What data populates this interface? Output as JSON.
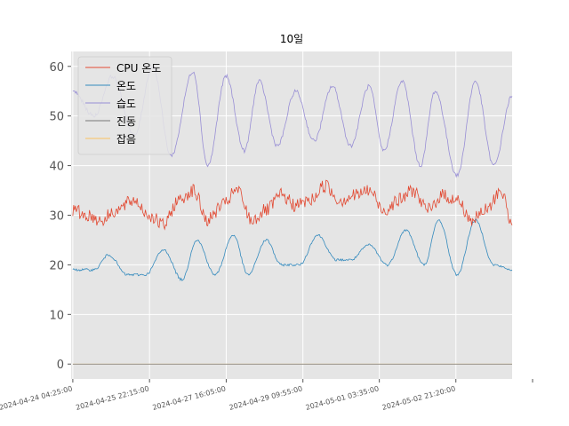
{
  "chart_data": {
    "type": "line",
    "title": "10일",
    "xlabel": "",
    "ylabel": "",
    "grid": true,
    "legend_position": "top-left",
    "ylim": [
      -3,
      63
    ],
    "yticks": [
      0,
      10,
      20,
      30,
      40,
      50,
      60
    ],
    "x_range": [
      "2024-04-24 03:30:00",
      "2024-05-04 04:00:00"
    ],
    "xticks": [
      "2024-04-24 04:25:00",
      "2024-04-25 22:15:00",
      "2024-04-27 16:05:00",
      "2024-04-29 09:55:00",
      "2024-05-01 03:35:00",
      "2024-05-02 21:20:00",
      "2024-05-04 15:10:00"
    ],
    "xtick_labels": [
      "2024-04-24 04:25:00",
      "2024-04-25 22:15:00",
      "2024-04-27 16:05:00",
      "2024-04-29 09:55:00",
      "2024-05-01 03:35:00",
      "2024-05-02 21:20:00",
      ""
    ],
    "series": [
      {
        "name": "CPU 온도",
        "color": "#e24a33",
        "x": [
          "2024-04-24 04:25:00",
          "2024-04-24 12:00:00",
          "2024-04-24 20:00:00",
          "2024-04-25 04:00:00",
          "2024-04-25 14:00:00",
          "2024-04-25 22:00:00",
          "2024-04-26 06:00:00",
          "2024-04-26 14:00:00",
          "2024-04-26 22:00:00",
          "2024-04-27 06:00:00",
          "2024-04-27 14:00:00",
          "2024-04-27 22:00:00",
          "2024-04-28 06:00:00",
          "2024-04-28 14:00:00",
          "2024-04-28 22:00:00",
          "2024-04-29 06:00:00",
          "2024-04-29 14:00:00",
          "2024-04-29 22:00:00",
          "2024-04-30 06:00:00",
          "2024-04-30 14:00:00",
          "2024-04-30 22:00:00",
          "2024-05-01 06:00:00",
          "2024-05-01 14:00:00",
          "2024-05-01 22:00:00",
          "2024-05-02 06:00:00",
          "2024-05-02 14:00:00",
          "2024-05-02 22:00:00",
          "2024-05-03 06:00:00",
          "2024-05-03 14:00:00",
          "2024-05-03 22:00:00",
          "2024-05-04 04:00:00"
        ],
        "values": [
          31,
          30,
          29,
          31,
          33,
          30,
          28,
          33,
          35,
          29,
          32,
          35,
          29,
          31,
          34,
          32,
          33,
          36,
          33,
          34,
          35,
          31,
          33,
          35,
          31,
          34,
          33,
          29,
          31,
          35,
          28
        ]
      },
      {
        "name": "온도",
        "color": "#348abd",
        "x": [
          "2024-04-24 04:25:00",
          "2024-04-24 16:00:00",
          "2024-04-25 00:00:00",
          "2024-04-25 10:00:00",
          "2024-04-25 20:00:00",
          "2024-04-26 06:00:00",
          "2024-04-26 16:00:00",
          "2024-04-27 00:00:00",
          "2024-04-27 10:00:00",
          "2024-04-27 20:00:00",
          "2024-04-28 04:00:00",
          "2024-04-28 14:00:00",
          "2024-04-28 22:00:00",
          "2024-04-29 08:00:00",
          "2024-04-29 18:00:00",
          "2024-04-30 04:00:00",
          "2024-04-30 12:00:00",
          "2024-04-30 22:00:00",
          "2024-05-01 08:00:00",
          "2024-05-01 18:00:00",
          "2024-05-02 04:00:00",
          "2024-05-02 12:00:00",
          "2024-05-02 22:00:00",
          "2024-05-03 08:00:00",
          "2024-05-03 18:00:00",
          "2024-05-04 04:00:00"
        ],
        "values": [
          19,
          19,
          22,
          18,
          18,
          23,
          17,
          25,
          18,
          26,
          18,
          25,
          20,
          20,
          26,
          21,
          21,
          24,
          20,
          27,
          20,
          29,
          18,
          29,
          20,
          19
        ]
      },
      {
        "name": "습도",
        "color": "#988ed5",
        "x": [
          "2024-04-24 04:25:00",
          "2024-04-24 16:00:00",
          "2024-04-25 02:00:00",
          "2024-04-25 14:00:00",
          "2024-04-26 00:00:00",
          "2024-04-26 10:00:00",
          "2024-04-26 22:00:00",
          "2024-04-27 06:00:00",
          "2024-04-27 16:00:00",
          "2024-04-28 02:00:00",
          "2024-04-28 10:00:00",
          "2024-04-28 20:00:00",
          "2024-04-29 06:00:00",
          "2024-04-29 16:00:00",
          "2024-04-30 02:00:00",
          "2024-04-30 12:00:00",
          "2024-04-30 22:00:00",
          "2024-05-01 06:00:00",
          "2024-05-01 16:00:00",
          "2024-05-02 02:00:00",
          "2024-05-02 10:00:00",
          "2024-05-02 22:00:00",
          "2024-05-03 08:00:00",
          "2024-05-03 18:00:00",
          "2024-05-04 04:00:00"
        ],
        "values": [
          55,
          50,
          58,
          46,
          60,
          42,
          59,
          40,
          58,
          43,
          57,
          44,
          55,
          45,
          56,
          44,
          56,
          43,
          57,
          40,
          55,
          38,
          57,
          40,
          54
        ]
      },
      {
        "name": "진동",
        "color": "#777777",
        "x": [
          "2024-04-24 04:25:00",
          "2024-05-04 04:00:00"
        ],
        "values": [
          0,
          0
        ]
      },
      {
        "name": "잡음",
        "color": "#fbc15e",
        "x": [
          "2024-04-24 04:25:00",
          "2024-05-04 04:00:00"
        ],
        "values": [
          0,
          0
        ]
      }
    ]
  }
}
